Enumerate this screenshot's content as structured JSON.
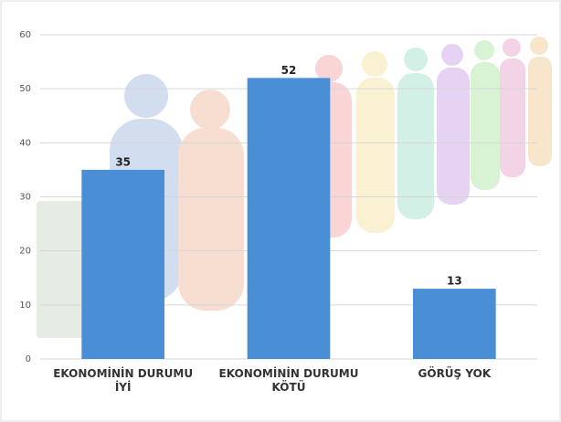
{
  "chart_data": {
    "type": "bar",
    "categories": [
      "EKONOMİNİN DURUMU İYİ",
      "EKONOMİNİN DURUMU KÖTÜ",
      "GÖRÜŞ YOK"
    ],
    "values": [
      35,
      52,
      13
    ],
    "color": "#4a8ed6",
    "ylim": [
      0,
      60
    ],
    "yticks": [
      0,
      10,
      20,
      30,
      40,
      50,
      60
    ],
    "grid": true
  }
}
